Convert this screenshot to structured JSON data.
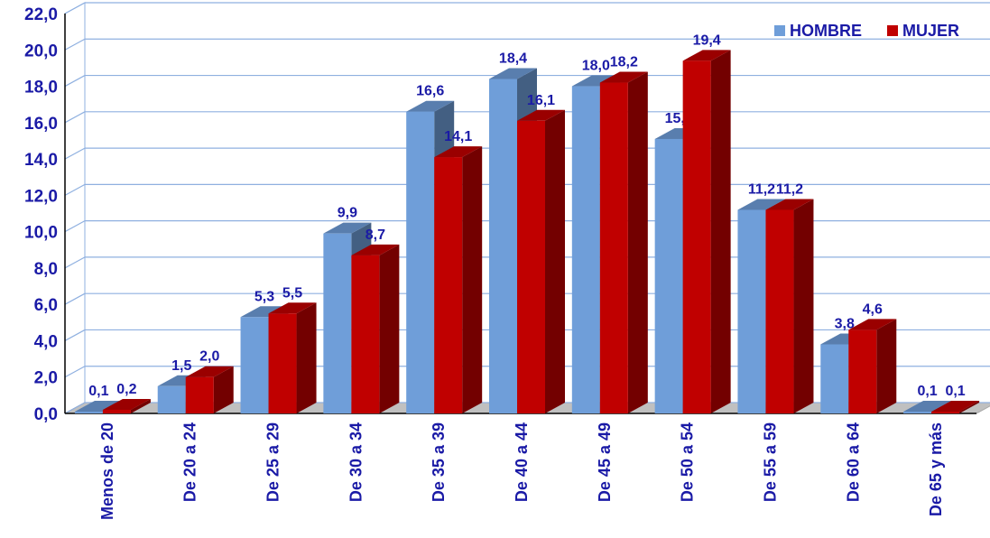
{
  "chart_data": {
    "type": "bar",
    "categories": [
      "Menos de 20",
      "De 20 a 24",
      "De 25 a 29",
      "De 30 a 34",
      "De 35 a 39",
      "De 40 a 44",
      "De 45 a 49",
      "De 50 a 54",
      "De 55 a 59",
      "De 60 a 64",
      "De 65 y más"
    ],
    "series": [
      {
        "name": "HOMBRE",
        "values": [
          0.1,
          1.5,
          5.3,
          9.9,
          16.6,
          18.4,
          18.0,
          15.1,
          11.2,
          3.8,
          0.1
        ],
        "labels": [
          "0,1",
          "1,5",
          "5,3",
          "9,9",
          "16,6",
          "18,4",
          "18,0",
          "15,1",
          "11,2",
          "3,8",
          "0,1"
        ],
        "color": "#6f9ed9"
      },
      {
        "name": "MUJER",
        "values": [
          0.2,
          2.0,
          5.5,
          8.7,
          14.1,
          16.1,
          18.2,
          19.4,
          11.2,
          4.6,
          0.1
        ],
        "labels": [
          "0,2",
          "2,0",
          "5,5",
          "8,7",
          "14,1",
          "16,1",
          "18,2",
          "19,4",
          "11,2",
          "4,6",
          "0,1"
        ],
        "color": "#c00000"
      }
    ],
    "ylim": [
      0,
      22
    ],
    "yticks": [
      "0,0",
      "2,0",
      "4,0",
      "6,0",
      "8,0",
      "10,0",
      "12,0",
      "14,0",
      "16,0",
      "18,0",
      "20,0",
      "22,0"
    ],
    "title": "",
    "xlabel": "",
    "ylabel": "",
    "grid": true,
    "legend": "top-right",
    "style": "3d-column"
  }
}
